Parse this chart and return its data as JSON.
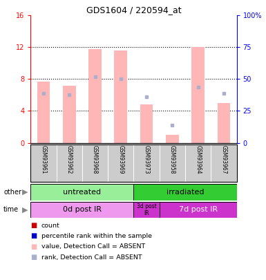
{
  "title": "GDS1604 / 220594_at",
  "samples": [
    "GSM93961",
    "GSM93962",
    "GSM93968",
    "GSM93969",
    "GSM93973",
    "GSM93958",
    "GSM93964",
    "GSM93967"
  ],
  "pink_bar_heights": [
    7.7,
    7.2,
    11.8,
    11.6,
    4.8,
    1.0,
    12.0,
    5.0
  ],
  "blue_marker_heights": [
    6.2,
    6.0,
    8.3,
    8.0,
    5.8,
    2.2,
    7.0,
    6.2
  ],
  "ylim_left": [
    0,
    16
  ],
  "ylim_right": [
    0,
    100
  ],
  "yticks_left": [
    0,
    4,
    8,
    12,
    16
  ],
  "yticks_right": [
    0,
    25,
    50,
    75,
    100
  ],
  "ytick_labels_right": [
    "0",
    "25",
    "50",
    "75",
    "100%"
  ],
  "absent_pink": "#ffb6b6",
  "absent_blue": "#aab0cc",
  "legend_items": [
    {
      "color": "#cc0000",
      "label": "count"
    },
    {
      "color": "#0000cc",
      "label": "percentile rank within the sample"
    },
    {
      "color": "#ffb6b6",
      "label": "value, Detection Call = ABSENT"
    },
    {
      "color": "#aab0cc",
      "label": "rank, Detection Call = ABSENT"
    }
  ],
  "sample_bg": "#cccccc",
  "untreated_color": "#99ee99",
  "irradiated_color": "#33cc33",
  "time_pink": "#ee99ee",
  "time_magenta": "#cc33cc"
}
